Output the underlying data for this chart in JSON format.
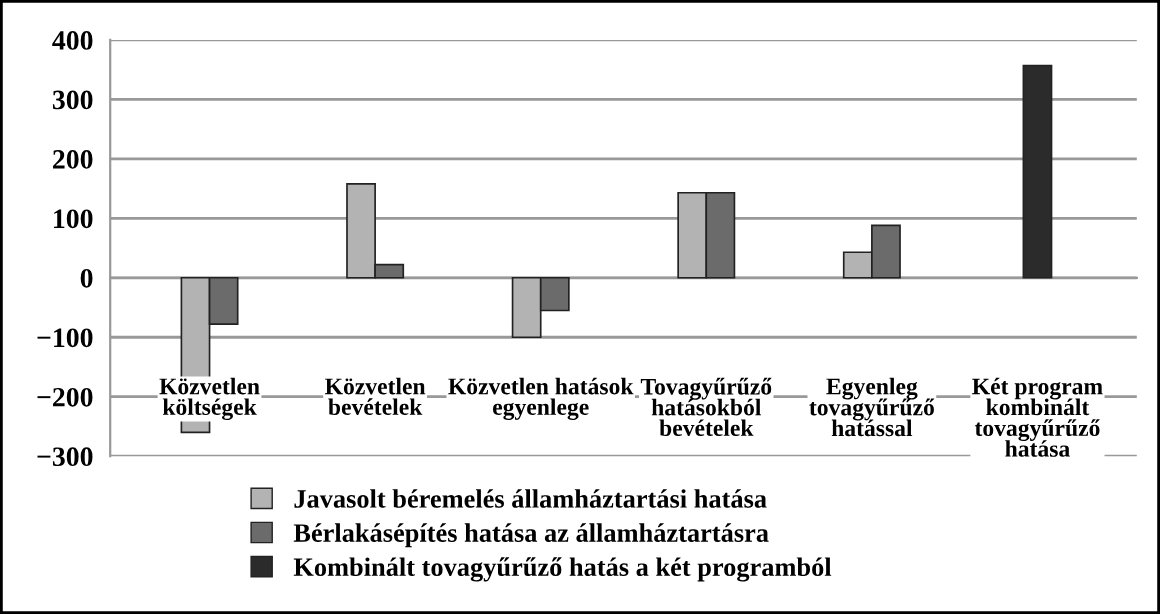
{
  "chart_data": {
    "type": "bar",
    "categories": [
      "Közvetlen\nköltségek",
      "Közvetlen\nbevételek",
      "Közvetlen hatások\negyenlege",
      "Tovagyűrűző\nhatásokból\nbevételek",
      "Egyenleg\ntovagyűrűző\nhatással",
      "Két program\nkombinált\ntovagyűrűző\nhatása"
    ],
    "series": [
      {
        "name": "Javasolt béremelés államháztartási hatása",
        "color": "#b3b3b3",
        "values": [
          -260,
          158,
          -100,
          143,
          43,
          null
        ]
      },
      {
        "name": "Bérlakásépítés hatása az államháztartásra",
        "color": "#6b6b6b",
        "values": [
          -78,
          22,
          -55,
          143,
          88,
          null
        ]
      },
      {
        "name": "Kombinált tovagyűrűző hatás a két programból",
        "color": "#2b2b2b",
        "values": [
          null,
          null,
          null,
          null,
          null,
          357
        ]
      }
    ],
    "ylim": [
      -300,
      400
    ],
    "yticks": [
      {
        "value": -300,
        "label": "−300"
      },
      {
        "value": -200,
        "label": "−200"
      },
      {
        "value": -100,
        "label": "−100"
      },
      0,
      100,
      200,
      300,
      400
    ],
    "grid": "y",
    "legend": "bottom"
  }
}
